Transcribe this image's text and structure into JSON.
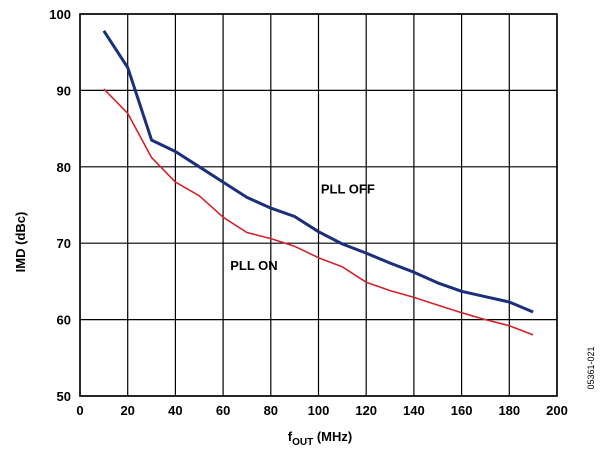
{
  "chart_data": {
    "type": "line",
    "title": "",
    "xlabel": {
      "main": "f",
      "subscript": "OUT",
      "suffix": " (MHz)"
    },
    "ylabel": "IMD (dBc)",
    "xlim": [
      0,
      200
    ],
    "ylim": [
      50,
      100
    ],
    "xticks": [
      0,
      20,
      40,
      60,
      80,
      100,
      120,
      140,
      160,
      180,
      200
    ],
    "yticks": [
      50,
      60,
      70,
      80,
      90,
      100
    ],
    "grid": true,
    "legend": "none",
    "series": [
      {
        "name": "PLL OFF",
        "color": "#1b2f7a",
        "x": [
          10,
          20,
          30,
          40,
          50,
          60,
          70,
          80,
          90,
          100,
          110,
          120,
          130,
          140,
          150,
          160,
          170,
          180,
          190
        ],
        "y": [
          97.8,
          93.0,
          83.5,
          82.0,
          80.0,
          78.0,
          76.0,
          74.6,
          73.5,
          71.5,
          69.9,
          68.7,
          67.4,
          66.2,
          64.8,
          63.7,
          63.0,
          62.3,
          61.0
        ]
      },
      {
        "name": "PLL ON",
        "color": "#d2232a",
        "x": [
          10,
          20,
          30,
          40,
          50,
          60,
          70,
          80,
          90,
          100,
          110,
          120,
          130,
          140,
          150,
          160,
          170,
          180,
          190
        ],
        "y": [
          90.2,
          87.0,
          81.2,
          78.0,
          76.2,
          73.4,
          71.4,
          70.6,
          69.6,
          68.1,
          66.9,
          64.9,
          63.8,
          62.9,
          61.9,
          60.9,
          60.0,
          59.2,
          58.0
        ]
      }
    ],
    "annotations": [
      {
        "text": "PLL OFF",
        "x": 101,
        "y": 76.5
      },
      {
        "text": "PLL ON",
        "x": 63,
        "y": 66.5
      }
    ],
    "figure_id": "05361-021"
  }
}
